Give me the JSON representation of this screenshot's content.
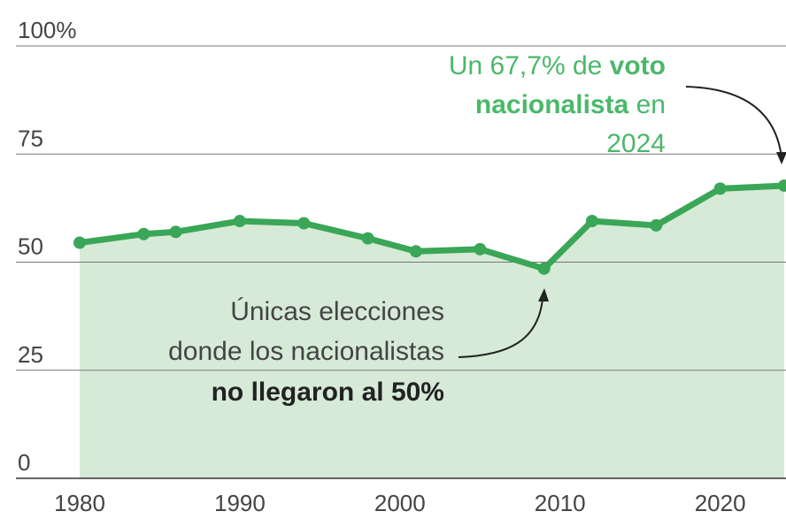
{
  "chart_data": {
    "type": "area",
    "x": [
      1980,
      1984,
      1986,
      1990,
      1994,
      1998,
      2001,
      2005,
      2009,
      2012,
      2016,
      2020,
      2024
    ],
    "series": [
      {
        "values": [
          54.5,
          56.5,
          57.0,
          59.5,
          59.0,
          55.5,
          52.5,
          53.0,
          48.5,
          59.5,
          58.5,
          67.0,
          67.7
        ]
      }
    ],
    "ylim": [
      0,
      100
    ],
    "xlim": [
      1980,
      2024
    ],
    "y_ticks": [
      "0",
      "25",
      "50",
      "75",
      "100%"
    ],
    "x_ticks": [
      "1980",
      "1990",
      "2000",
      "2010",
      "2020"
    ],
    "grid": true,
    "annotations": {
      "top": {
        "line1_normal": "Un 67,7% de ",
        "line1_bold": "voto",
        "line2_bold": "nacionalista",
        "line2_normal": " en",
        "line3_normal": "2024"
      },
      "bottom": {
        "line1": "Únicas elecciones",
        "line2": "donde los nacionalistas",
        "line3_bold": "no llegaron al 50%"
      }
    },
    "colors": {
      "line": "#3aa657",
      "fill": "#d6ead7",
      "top_annotation": "#4bb86a",
      "bottom_annotation": "#444444",
      "bottom_annotation_bold": "#222222",
      "grid": "#777777",
      "arrow": "#222222"
    }
  }
}
